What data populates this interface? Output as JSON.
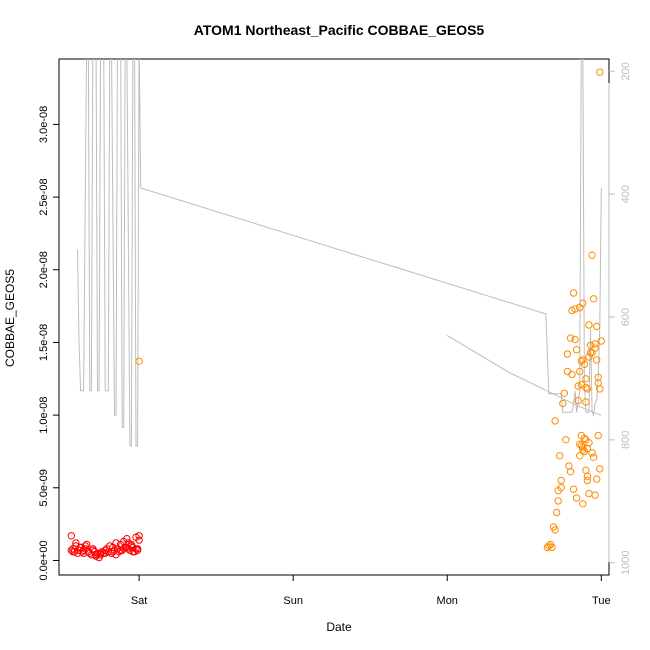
{
  "chart_data": {
    "type": "scatter",
    "title": "ATOM1 Northeast_Pacific COBBAE_GEOS5",
    "xlabel": "Date",
    "ylabel": "COBBAE_GEOS5",
    "x_ticks": [
      "Sat",
      "Sun",
      "Mon",
      "Tue"
    ],
    "x_range_days": [
      -0.52,
      3.05
    ],
    "y_ticks": [
      "0.0e+00",
      "5.0e-09",
      "1.0e-08",
      "1.5e-08",
      "2.0e-08",
      "2.5e-08",
      "3.0e-08"
    ],
    "y_tick_values": [
      0,
      5e-09,
      1e-08,
      1.5e-08,
      2e-08,
      2.5e-08,
      3e-08
    ],
    "ylim": [
      -1e-09,
      3.45e-08
    ],
    "y2_ticks": [
      "200",
      "400",
      "600",
      "800",
      "1000"
    ],
    "y2_tick_values": [
      200,
      400,
      600,
      800,
      1000
    ],
    "y2lim": [
      1020,
      180
    ],
    "y2_axis_color": "#bdbdbd",
    "grid": false,
    "series": [
      {
        "marker": "circle-open",
        "color": "#ff0000",
        "x": [
          -0.44,
          -0.43,
          -0.42,
          -0.41,
          -0.4,
          -0.39,
          -0.38,
          -0.37,
          -0.36,
          -0.35,
          -0.34,
          -0.33,
          -0.32,
          -0.31,
          -0.3,
          -0.29,
          -0.28,
          -0.27,
          -0.26,
          -0.25,
          -0.24,
          -0.23,
          -0.22,
          -0.21,
          -0.2,
          -0.19,
          -0.18,
          -0.17,
          -0.16,
          -0.15,
          -0.14,
          -0.13,
          -0.12,
          -0.11,
          -0.1,
          -0.09,
          -0.08,
          -0.07,
          -0.06,
          -0.05,
          -0.04,
          -0.03,
          -0.02,
          -0.01,
          0.0,
          -0.44,
          -0.41,
          -0.38,
          -0.35,
          -0.3,
          -0.25,
          -0.2,
          -0.15,
          -0.1,
          -0.07,
          -0.05,
          -0.02,
          0.0,
          -0.43,
          -0.36,
          -0.28,
          -0.22,
          -0.17,
          -0.12,
          -0.08,
          -0.04,
          -0.01
        ],
        "y": [
          7e-10,
          8e-10,
          6e-10,
          1e-09,
          5e-10,
          7e-10,
          9e-10,
          6e-10,
          5e-10,
          8e-10,
          1.1e-09,
          6e-10,
          5e-10,
          4e-10,
          8e-10,
          6e-10,
          3e-10,
          5e-10,
          2e-10,
          4e-10,
          6e-10,
          5e-10,
          7e-10,
          8e-10,
          6e-10,
          1e-09,
          5e-10,
          9e-10,
          7e-10,
          1.2e-09,
          8e-10,
          6e-10,
          1.1e-09,
          7e-10,
          1.3e-09,
          9e-10,
          1.5e-09,
          8e-10,
          7e-10,
          1.1e-09,
          9e-10,
          6e-10,
          8e-10,
          7e-10,
          1.4e-09,
          1.7e-09,
          1.2e-09,
          9e-10,
          1e-09,
          7e-10,
          5e-10,
          6e-10,
          4e-10,
          8e-10,
          1.2e-09,
          1e-09,
          1.6e-09,
          1.7e-09,
          6e-10,
          7e-10,
          4e-10,
          5e-10,
          6e-10,
          7e-10,
          9e-10,
          6e-10,
          8e-10
        ]
      },
      {
        "marker": "circle-open",
        "color": "#ff8c00",
        "x": [
          0.0,
          2.65,
          2.66,
          2.67,
          2.68,
          2.7,
          2.71,
          2.72,
          2.73,
          2.75,
          2.76,
          2.78,
          2.8,
          2.81,
          2.82,
          2.83,
          2.84,
          2.85,
          2.86,
          2.87,
          2.88,
          2.89,
          2.9,
          2.91,
          2.92,
          2.93,
          2.94,
          2.95,
          2.96,
          2.97,
          2.98,
          2.99,
          3.0,
          2.69,
          2.74,
          2.77,
          2.79,
          2.85,
          2.87,
          2.88,
          2.9,
          2.92,
          2.94,
          2.96,
          2.98,
          2.86,
          2.87,
          2.88,
          2.89,
          2.9,
          2.91,
          2.92,
          2.86,
          2.87,
          2.88,
          2.89,
          2.9,
          2.91,
          2.92,
          2.95,
          2.97,
          2.99,
          2.96,
          2.98,
          2.7,
          2.72,
          2.74,
          2.78,
          2.81,
          2.83,
          2.86,
          2.9,
          2.93,
          2.97,
          2.99,
          2.8,
          2.82,
          2.84,
          2.88,
          2.91,
          2.94
        ],
        "y": [
          1.37e-08,
          9e-10,
          1e-09,
          1.1e-09,
          9e-10,
          2.1e-09,
          3.3e-09,
          4.8e-09,
          7.2e-09,
          1.08e-08,
          1.15e-08,
          1.3e-08,
          1.53e-08,
          1.72e-08,
          1.84e-08,
          1.73e-08,
          1.45e-08,
          1.2e-08,
          1.3e-08,
          1.37e-08,
          1.38e-08,
          1.35e-08,
          1.25e-08,
          1.18e-08,
          1.4e-08,
          1.48e-08,
          2.1e-08,
          1.8e-08,
          1.46e-08,
          1.38e-08,
          1.26e-08,
          1.18e-08,
          1.51e-08,
          2.3e-09,
          5.5e-09,
          8.3e-09,
          6.5e-09,
          1.1e-08,
          1.21e-08,
          1.77e-08,
          1.09e-08,
          1.62e-08,
          1.43e-08,
          1.49e-08,
          1.22e-08,
          8e-09,
          8.6e-09,
          7.8e-09,
          7.5e-09,
          8.3e-09,
          7.7e-09,
          8.1e-09,
          7.2e-09,
          7.9e-09,
          7.6e-09,
          8.4e-09,
          6.2e-09,
          5.8e-09,
          4.6e-09,
          7.1e-09,
          5.6e-09,
          6.3e-09,
          4.5e-09,
          8.6e-09,
          9.6e-09,
          4.1e-09,
          5e-09,
          1.42e-08,
          1.28e-08,
          1.52e-08,
          1.74e-08,
          1.19e-08,
          1.43e-08,
          1.61e-08,
          3.36e-08,
          6.1e-09,
          4.9e-09,
          4.3e-09,
          3.9e-09,
          5.5e-09,
          7.4e-09
        ]
      }
    ],
    "pressure_line": {
      "color": "#bdbdbd",
      "axis": "right",
      "segments": [
        {
          "x": [
            -0.4,
            -0.39,
            -0.38,
            -0.36,
            -0.34,
            -0.33,
            -0.32,
            -0.31,
            -0.3,
            -0.28,
            -0.27,
            -0.26,
            -0.25,
            -0.23,
            -0.22,
            -0.2,
            -0.19,
            -0.18,
            -0.16,
            -0.15,
            -0.14,
            -0.12,
            -0.11,
            -0.1,
            -0.09,
            -0.08,
            -0.06,
            -0.05,
            -0.04,
            -0.03,
            -0.02,
            -0.01,
            0.0,
            0.01
          ],
          "y": [
            490,
            640,
            720,
            720,
            140,
            140,
            720,
            720,
            140,
            140,
            720,
            720,
            140,
            140,
            720,
            720,
            140,
            140,
            760,
            760,
            140,
            140,
            780,
            780,
            140,
            140,
            810,
            810,
            140,
            140,
            810,
            810,
            145,
            390
          ]
        },
        {
          "x": [
            0.01,
            2.64,
            2.64,
            2.66,
            2.66,
            2.69,
            2.7,
            2.72,
            2.73,
            2.74,
            2.75,
            2.76,
            2.77,
            2.78,
            2.79,
            2.8,
            2.81,
            2.82,
            2.83,
            2.84,
            2.85,
            2.86,
            2.87,
            2.88,
            2.89,
            2.9,
            2.91,
            2.92,
            2.93,
            2.94,
            2.95,
            2.96,
            2.97,
            2.98,
            2.99,
            3.0
          ],
          "y": [
            390,
            595,
            595,
            725,
            725,
            725,
            725,
            725,
            725,
            725,
            755,
            755,
            755,
            755,
            755,
            755,
            755,
            740,
            720,
            755,
            740,
            720,
            155,
            150,
            710,
            755,
            755,
            755,
            620,
            755,
            760,
            740,
            735,
            700,
            615,
            390
          ]
        },
        {
          "x": [
            2.0,
            2.4,
            2.85,
            3.0
          ],
          "y": [
            630,
            690,
            745,
            760
          ]
        }
      ]
    }
  }
}
